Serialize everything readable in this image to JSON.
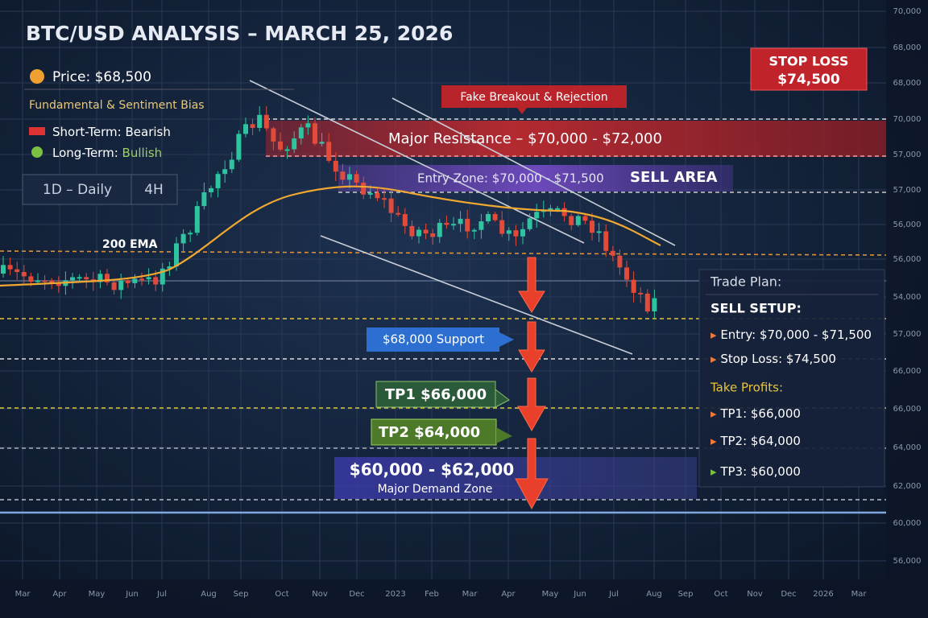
{
  "header": {
    "title": "BTC/USD ANALYSIS – MARCH 25, 2026",
    "price": "Price: $68,500",
    "bias_title": "Fundamental & Sentiment Bias",
    "short_term": {
      "label": "Short-Term:",
      "value": "Bearish"
    },
    "long_term": {
      "label": "Long-Term:",
      "value": "Bullish"
    },
    "timeframes": [
      "1D – Daily",
      "4H"
    ]
  },
  "annotations": {
    "ema": "200 EMA",
    "fake_breakout": "Fake Breakout & Rejection",
    "resistance": "Major Resistance – $70,000 - $72,000",
    "entry_zone": "Entry Zone: $70,000 - $71,500",
    "sell_area": "SELL AREA",
    "support": "$68,000 Support",
    "tp1": "TP1 $66,000",
    "tp2": "TP2 $64,000",
    "demand": {
      "price": "$60,000 - $62,000",
      "label": "Major Demand Zone"
    },
    "stop_loss": {
      "label": "STOP LOSS",
      "value": "$74,500"
    }
  },
  "trade_plan": {
    "title": "Trade Plan:",
    "setup": "SELL SETUP:",
    "entry": "Entry: $70,000 - $71,500",
    "stop": "Stop Loss: $74,500",
    "take_profits_title": "Take Profits:",
    "tps": [
      "TP1: $66,000",
      "TP2: $64,000",
      "TP3: $60,000"
    ]
  },
  "axis": {
    "y_labels": [
      "70,000",
      "68,000",
      "68,000",
      "70,000",
      "57,000",
      "57,000",
      "56,000",
      "56,000",
      "54,000",
      "57,000",
      "66,000",
      "66,000",
      "64,000",
      "62,000",
      "60,000",
      "56,000"
    ],
    "x_labels": [
      "Mar",
      "Apr",
      "May",
      "Jun",
      "Jul",
      "Aug",
      "Sep",
      "Oct",
      "Nov",
      "Dec",
      "2023",
      "Feb",
      "Mar",
      "Apr",
      "May",
      "Jun",
      "Jul",
      "Aug",
      "Sep",
      "Oct",
      "Nov",
      "Dec",
      "2026",
      "Mar"
    ]
  }
}
